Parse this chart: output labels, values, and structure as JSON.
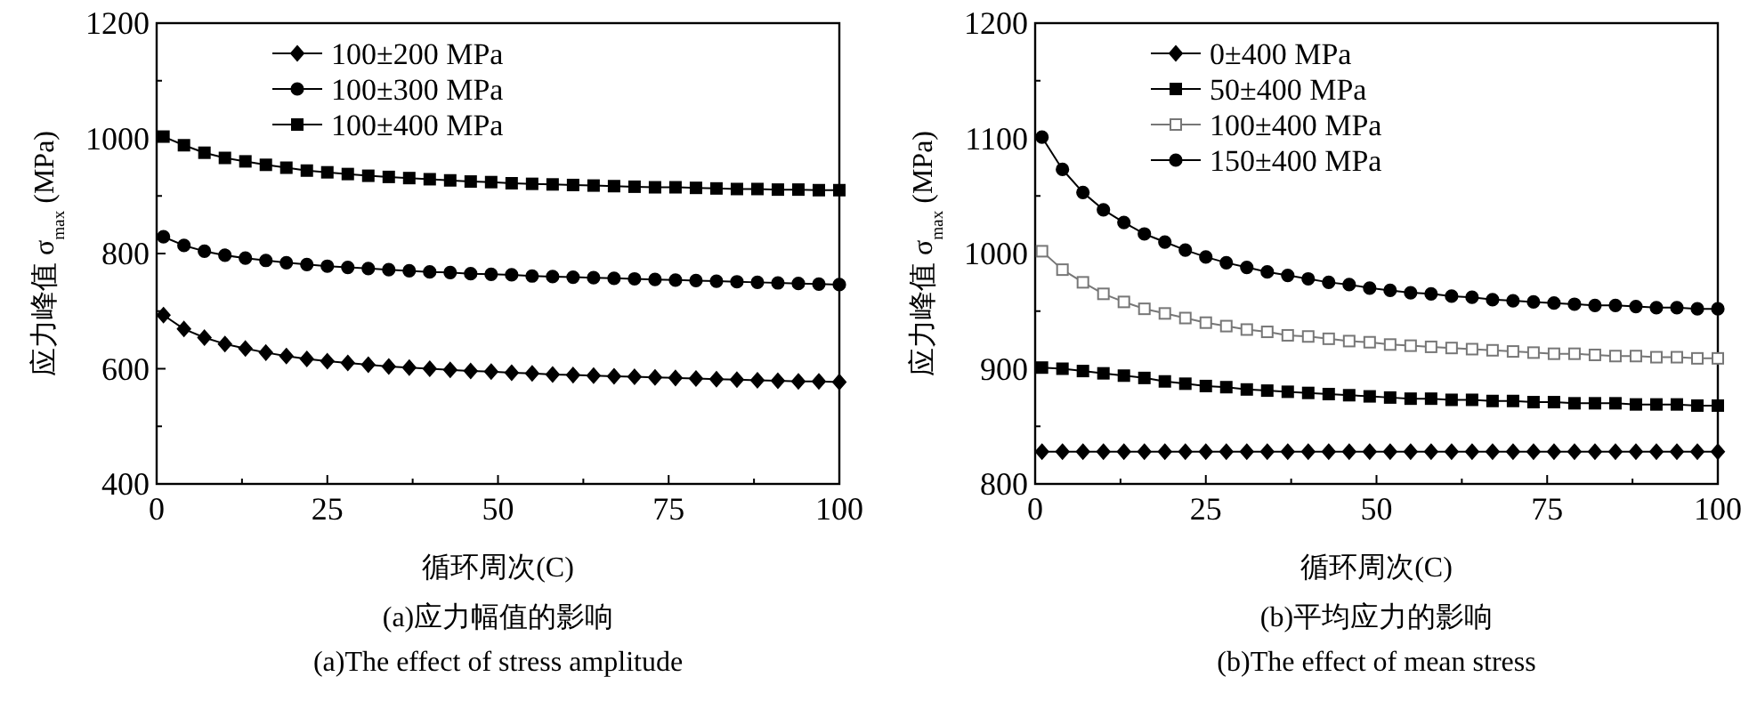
{
  "chart_data": [
    {
      "type": "line",
      "xlabel": "循环周次(C)",
      "ylabel": "应力峰值 σ$_{max}$ (MPa)",
      "annotations": [
        "(a)应力幅值的影响",
        "(a)The effect of stress amplitude"
      ],
      "x": [
        1,
        4,
        7,
        10,
        13,
        16,
        19,
        22,
        25,
        28,
        31,
        34,
        37,
        40,
        43,
        46,
        49,
        52,
        55,
        58,
        61,
        64,
        67,
        70,
        73,
        76,
        79,
        82,
        85,
        88,
        91,
        94,
        97,
        100
      ],
      "xlim": [
        0,
        100
      ],
      "xticks": [
        0,
        {
          "value": 12.5,
          "label": null
        },
        25,
        {
          "value": 37.5,
          "label": null
        },
        50,
        {
          "value": 62.5,
          "label": null
        },
        75,
        {
          "value": 87.5,
          "label": null
        },
        100
      ],
      "ylim": [
        400,
        1200
      ],
      "yticks": [
        400,
        {
          "value": 500,
          "label": null
        },
        600,
        {
          "value": 700,
          "label": null
        },
        800,
        {
          "value": 900,
          "label": null
        },
        1000,
        {
          "value": 1100,
          "label": null
        },
        1200
      ],
      "legend": "top left",
      "series": [
        {
          "name": "100±200 MPa",
          "color": "#000000",
          "marker": "diamond",
          "values": [
            693,
            669,
            654,
            643,
            635,
            628,
            622,
            617,
            613,
            610,
            607,
            604,
            602,
            600,
            598,
            596,
            595,
            593,
            592,
            590,
            589,
            588,
            587,
            586,
            585,
            584,
            583,
            582,
            581,
            580,
            579,
            578,
            578,
            577
          ]
        },
        {
          "name": "100±300 MPa",
          "color": "#000000",
          "marker": "circle",
          "values": [
            829,
            814,
            804,
            797,
            792,
            788,
            784,
            781,
            778,
            776,
            774,
            772,
            770,
            768,
            767,
            765,
            764,
            763,
            761,
            760,
            759,
            758,
            757,
            756,
            755,
            754,
            753,
            752,
            751,
            750,
            749,
            748,
            747,
            746
          ]
        },
        {
          "name": "100±400 MPa",
          "color": "#000000",
          "marker": "square",
          "values": [
            1003,
            988,
            975,
            966,
            960,
            954,
            949,
            944,
            941,
            938,
            935,
            933,
            931,
            929,
            927,
            925,
            924,
            922,
            921,
            920,
            919,
            918,
            917,
            916,
            915,
            915,
            914,
            913,
            912,
            912,
            911,
            911,
            910,
            910
          ]
        }
      ]
    },
    {
      "type": "line",
      "xlabel": "循环周次(C)",
      "ylabel": "应力峰值 σ$_{max}$ (MPa)",
      "annotations": [
        "(b)平均应力的影响",
        "(b)The effect of mean stress"
      ],
      "x": [
        1,
        4,
        7,
        10,
        13,
        16,
        19,
        22,
        25,
        28,
        31,
        34,
        37,
        40,
        43,
        46,
        49,
        52,
        55,
        58,
        61,
        64,
        67,
        70,
        73,
        76,
        79,
        82,
        85,
        88,
        91,
        94,
        97,
        100
      ],
      "xlim": [
        0,
        100
      ],
      "xticks": [
        0,
        {
          "value": 12.5,
          "label": null
        },
        25,
        {
          "value": 37.5,
          "label": null
        },
        50,
        {
          "value": 62.5,
          "label": null
        },
        75,
        {
          "value": 87.5,
          "label": null
        },
        100
      ],
      "ylim": [
        800,
        1200
      ],
      "yticks": [
        800,
        {
          "value": 850,
          "label": null
        },
        900,
        {
          "value": 950,
          "label": null
        },
        1000,
        {
          "value": 1050,
          "label": null
        },
        1100,
        {
          "value": 1150,
          "label": null
        },
        1200
      ],
      "legend": "top left",
      "series": [
        {
          "name": "0±400 MPa",
          "color": "#000000",
          "marker": "diamond",
          "values": [
            828,
            828,
            828,
            828,
            828,
            828,
            828,
            828,
            828,
            828,
            828,
            828,
            828,
            828,
            828,
            828,
            828,
            828,
            828,
            828,
            828,
            828,
            828,
            828,
            828,
            828,
            828,
            828,
            828,
            828,
            828,
            828,
            828,
            828
          ]
        },
        {
          "name": "50±400 MPa",
          "color": "#000000",
          "marker": "square",
          "values": [
            901,
            900,
            898,
            896,
            894,
            892,
            889,
            887,
            885,
            884,
            882,
            881,
            880,
            879,
            878,
            877,
            876,
            875,
            874,
            874,
            873,
            873,
            872,
            872,
            871,
            871,
            870,
            870,
            870,
            869,
            869,
            869,
            868,
            868
          ]
        },
        {
          "name": "100±400 MPa",
          "color": "#777777",
          "marker": "square",
          "values": [
            1002,
            986,
            975,
            965,
            958,
            952,
            948,
            944,
            940,
            937,
            934,
            932,
            929,
            928,
            926,
            924,
            923,
            921,
            920,
            919,
            918,
            917,
            916,
            915,
            914,
            913,
            913,
            912,
            911,
            911,
            910,
            910,
            909,
            909
          ]
        },
        {
          "name": "150±400 MPa",
          "color": "#000000",
          "marker": "circle",
          "values": [
            1101,
            1073,
            1053,
            1038,
            1027,
            1017,
            1010,
            1003,
            997,
            992,
            988,
            984,
            981,
            978,
            975,
            973,
            970,
            968,
            966,
            965,
            963,
            962,
            960,
            959,
            958,
            957,
            956,
            955,
            955,
            954,
            953,
            953,
            952,
            952
          ]
        }
      ]
    }
  ]
}
